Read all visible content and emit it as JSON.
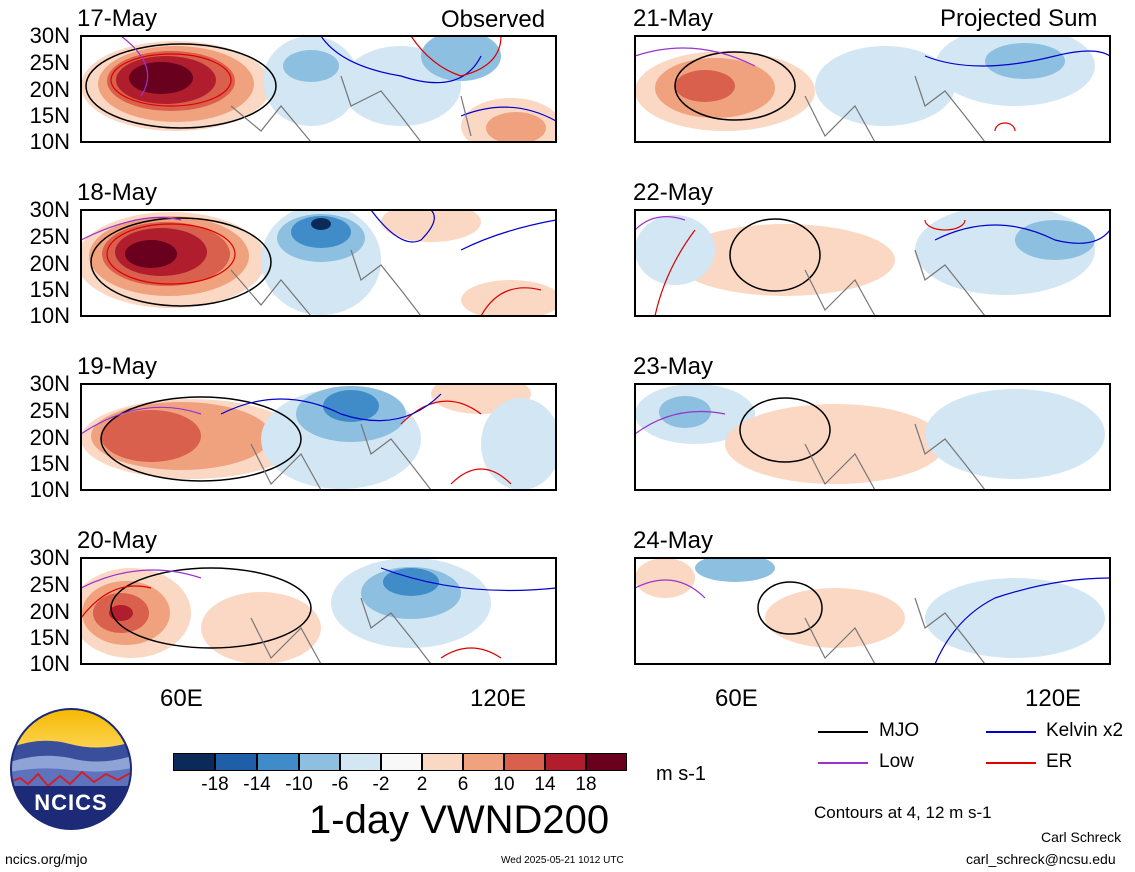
{
  "panels": {
    "observed_title": "Observed",
    "projected_title": "Projected Sum",
    "left_dates": [
      "17-May",
      "18-May",
      "19-May",
      "20-May"
    ],
    "right_dates": [
      "21-May",
      "22-May",
      "23-May",
      "24-May"
    ]
  },
  "axes": {
    "lat_labels": [
      "30N",
      "25N",
      "20N",
      "15N",
      "10N"
    ],
    "lon_labels": [
      "60E",
      "120E"
    ]
  },
  "colorbar": {
    "tick_labels": [
      "-18",
      "-14",
      "-10",
      "-6",
      "-2",
      "2",
      "6",
      "10",
      "14",
      "18"
    ],
    "units": "m s-1",
    "colors": [
      "#0a2a5a",
      "#1f5fa8",
      "#3f8cc8",
      "#8cbfe0",
      "#d2e6f3",
      "#f8f8f8",
      "#fbd8c3",
      "#f0a27f",
      "#d8604c",
      "#b01e2e",
      "#68001e"
    ]
  },
  "legend": {
    "mjo": "MJO",
    "low": "Low",
    "kelvin": "Kelvin x2",
    "er": "ER",
    "mjo_color": "#000000",
    "low_color": "#9933cc",
    "kelvin_color": "#0000cc",
    "er_color": "#dd0000"
  },
  "main_title": "1-day VWND200",
  "contours_note": "Contours at 4, 12 m s-1",
  "logo_text": "NCICS",
  "footer": {
    "url": "ncics.org/mjo",
    "timestamp": "Wed 2025-05-21 1012 UTC",
    "author": "Carl Schreck",
    "email": "carl_schreck@ncsu.edu"
  }
}
